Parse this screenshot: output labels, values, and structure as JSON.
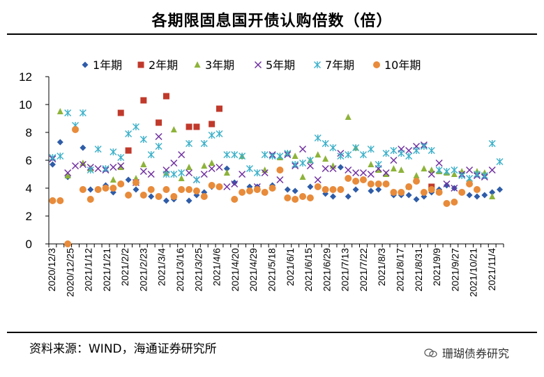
{
  "title": "各期限固息国开债认购倍数（倍）",
  "source": "资料来源：WIND，海通证券研究所",
  "watermark": "珊瑚债券研究",
  "chart_data": {
    "type": "scatter",
    "title": "各期限固息国开债认购倍数（倍）",
    "ylim": [
      0,
      12
    ],
    "yticks": [
      0,
      2,
      4,
      6,
      8,
      10,
      12
    ],
    "grid": false,
    "legend_position": "top",
    "x_tick_labels": [
      "2020/12/3",
      "2020/12/25",
      "2021/1/12",
      "2021/1/21",
      "2021/2/2",
      "2021/2/23",
      "2021/3/4",
      "2021/3/16",
      "2021/3/25",
      "2021/4/6",
      "2021/4/20",
      "2021/4/29",
      "2021/5/18",
      "2021/6/1",
      "2021/6/15",
      "2021/6/29",
      "2021/7/13",
      "2021/7/22",
      "2021/8/3",
      "2021/8/17",
      "2021/8/31",
      "2021/9/9",
      "2021/9/27",
      "2021/10/21",
      "2021/11/4"
    ],
    "n_x": 60,
    "series": [
      {
        "name": "1年期",
        "marker": "diamond",
        "color": "#2E5CA8",
        "points": [
          [
            0,
            5.7
          ],
          [
            1,
            7.3
          ],
          [
            2,
            4.8
          ],
          [
            4,
            6.9
          ],
          [
            5,
            3.9
          ],
          [
            7,
            4.2
          ],
          [
            8,
            3.7
          ],
          [
            10,
            4.6
          ],
          [
            11,
            3.9
          ],
          [
            13,
            3.4
          ],
          [
            15,
            3.1
          ],
          [
            16,
            3.2
          ],
          [
            18,
            3.1
          ],
          [
            19,
            3.5
          ],
          [
            20,
            3.7
          ],
          [
            21,
            4.1
          ],
          [
            23,
            5.4
          ],
          [
            24,
            4.4
          ],
          [
            26,
            4.1
          ],
          [
            27,
            4.1
          ],
          [
            29,
            4.2
          ],
          [
            31,
            3.9
          ],
          [
            32,
            3.8
          ],
          [
            34,
            4.1
          ],
          [
            36,
            3.6
          ],
          [
            37,
            3.4
          ],
          [
            38,
            5.5
          ],
          [
            39,
            3.4
          ],
          [
            40,
            3.9
          ],
          [
            41,
            4.6
          ],
          [
            42,
            3.8
          ],
          [
            43,
            3.9
          ],
          [
            45,
            3.5
          ],
          [
            46,
            3.5
          ],
          [
            47,
            3.5
          ],
          [
            48,
            3.2
          ],
          [
            49,
            3.4
          ],
          [
            50,
            3.7
          ],
          [
            51,
            3.9
          ],
          [
            52,
            4.2
          ],
          [
            53,
            4.0
          ],
          [
            54,
            3.7
          ],
          [
            55,
            3.5
          ],
          [
            56,
            3.4
          ],
          [
            57,
            3.5
          ],
          [
            58,
            3.7
          ],
          [
            59,
            3.9
          ]
        ]
      },
      {
        "name": "2年期",
        "marker": "square",
        "color": "#C0392B",
        "points": [
          [
            9,
            9.4
          ],
          [
            10,
            6.7
          ],
          [
            12,
            10.3
          ],
          [
            14,
            8.7
          ],
          [
            15,
            10.6
          ],
          [
            18,
            8.4
          ],
          [
            19,
            8.4
          ],
          [
            21,
            8.6
          ],
          [
            22,
            9.7
          ],
          [
            50,
            4.1
          ]
        ]
      },
      {
        "name": "3年期",
        "marker": "triangle",
        "color": "#8DB33A",
        "points": [
          [
            1,
            9.5
          ],
          [
            2,
            4.9
          ],
          [
            4,
            5.8
          ],
          [
            5,
            5.4
          ],
          [
            8,
            4.6
          ],
          [
            9,
            5.5
          ],
          [
            11,
            4.7
          ],
          [
            12,
            5.7
          ],
          [
            15,
            5.1
          ],
          [
            16,
            8.2
          ],
          [
            17,
            4.7
          ],
          [
            18,
            5.5
          ],
          [
            20,
            5.6
          ],
          [
            21,
            5.8
          ],
          [
            23,
            5.1
          ],
          [
            25,
            6.3
          ],
          [
            28,
            5.3
          ],
          [
            30,
            6.2
          ],
          [
            31,
            6.5
          ],
          [
            32,
            6.3
          ],
          [
            33,
            4.8
          ],
          [
            34,
            6.0
          ],
          [
            35,
            6.4
          ],
          [
            36,
            6.1
          ],
          [
            37,
            5.6
          ],
          [
            39,
            9.1
          ],
          [
            40,
            6.9
          ],
          [
            42,
            5.7
          ],
          [
            43,
            5.3
          ],
          [
            44,
            5.0
          ],
          [
            45,
            5.4
          ],
          [
            46,
            5.3
          ],
          [
            47,
            4.1
          ],
          [
            48,
            4.9
          ],
          [
            49,
            5.4
          ],
          [
            50,
            5.3
          ],
          [
            51,
            5.2
          ],
          [
            52,
            5.1
          ],
          [
            53,
            5.0
          ],
          [
            54,
            5.2
          ],
          [
            55,
            4.5
          ],
          [
            56,
            5.2
          ],
          [
            57,
            5.1
          ],
          [
            58,
            3.4
          ]
        ]
      },
      {
        "name": "5年期",
        "marker": "x",
        "color": "#7030A0",
        "points": [
          [
            0,
            6.1
          ],
          [
            2,
            5.1
          ],
          [
            3,
            5.6
          ],
          [
            4,
            5.7
          ],
          [
            5,
            5.5
          ],
          [
            6,
            5.4
          ],
          [
            7,
            5.3
          ],
          [
            8,
            5.5
          ],
          [
            9,
            5.6
          ],
          [
            11,
            4.4
          ],
          [
            12,
            5.2
          ],
          [
            13,
            5.0
          ],
          [
            14,
            7.7
          ],
          [
            15,
            5.3
          ],
          [
            16,
            5.8
          ],
          [
            17,
            6.4
          ],
          [
            18,
            5.1
          ],
          [
            19,
            4.6
          ],
          [
            20,
            5.0
          ],
          [
            21,
            5.4
          ],
          [
            22,
            5.5
          ],
          [
            23,
            4.1
          ],
          [
            24,
            4.3
          ],
          [
            25,
            5.0
          ],
          [
            27,
            4.1
          ],
          [
            28,
            5.1
          ],
          [
            29,
            6.4
          ],
          [
            30,
            4.6
          ],
          [
            31,
            6.4
          ],
          [
            32,
            5.6
          ],
          [
            33,
            6.8
          ],
          [
            34,
            5.6
          ],
          [
            35,
            4.6
          ],
          [
            36,
            5.4
          ],
          [
            37,
            5.4
          ],
          [
            38,
            6.5
          ],
          [
            39,
            5.3
          ],
          [
            40,
            5.1
          ],
          [
            41,
            5.1
          ],
          [
            42,
            5.0
          ],
          [
            43,
            5.4
          ],
          [
            44,
            5.1
          ],
          [
            45,
            6.0
          ],
          [
            46,
            6.8
          ],
          [
            47,
            6.7
          ],
          [
            48,
            7.0
          ],
          [
            49,
            7.1
          ],
          [
            50,
            5.0
          ],
          [
            51,
            5.8
          ],
          [
            52,
            4.3
          ],
          [
            53,
            4.0
          ],
          [
            54,
            5.0
          ],
          [
            55,
            5.3
          ],
          [
            56,
            4.9
          ],
          [
            57,
            4.8
          ],
          [
            58,
            5.3
          ]
        ]
      },
      {
        "name": "7年期",
        "marker": "star",
        "color": "#3BB0C9",
        "points": [
          [
            0,
            6.2
          ],
          [
            1,
            6.3
          ],
          [
            2,
            9.4
          ],
          [
            3,
            8.5
          ],
          [
            4,
            9.4
          ],
          [
            5,
            5.3
          ],
          [
            6,
            6.8
          ],
          [
            7,
            5.4
          ],
          [
            8,
            6.6
          ],
          [
            9,
            6.2
          ],
          [
            10,
            7.9
          ],
          [
            11,
            8.4
          ],
          [
            12,
            7.5
          ],
          [
            13,
            6.4
          ],
          [
            14,
            7.0
          ],
          [
            15,
            5.0
          ],
          [
            16,
            5.0
          ],
          [
            17,
            5.1
          ],
          [
            18,
            7.2
          ],
          [
            19,
            4.6
          ],
          [
            20,
            7.2
          ],
          [
            21,
            7.8
          ],
          [
            22,
            7.9
          ],
          [
            23,
            6.4
          ],
          [
            24,
            6.4
          ],
          [
            25,
            6.3
          ],
          [
            26,
            5.4
          ],
          [
            27,
            5.1
          ],
          [
            28,
            6.4
          ],
          [
            29,
            6.3
          ],
          [
            30,
            6.3
          ],
          [
            31,
            6.5
          ],
          [
            32,
            5.7
          ],
          [
            33,
            5.8
          ],
          [
            34,
            6.0
          ],
          [
            35,
            7.6
          ],
          [
            36,
            7.2
          ],
          [
            37,
            6.9
          ],
          [
            38,
            6.3
          ],
          [
            39,
            6.4
          ],
          [
            40,
            6.9
          ],
          [
            41,
            6.4
          ],
          [
            42,
            6.8
          ],
          [
            43,
            5.7
          ],
          [
            44,
            6.5
          ],
          [
            45,
            6.7
          ],
          [
            46,
            6.5
          ],
          [
            47,
            6.3
          ],
          [
            48,
            6.7
          ],
          [
            49,
            7.0
          ],
          [
            50,
            6.7
          ],
          [
            51,
            5.3
          ],
          [
            52,
            5.2
          ],
          [
            53,
            5.3
          ],
          [
            54,
            4.9
          ],
          [
            55,
            4.7
          ],
          [
            56,
            5.0
          ],
          [
            57,
            4.9
          ],
          [
            58,
            7.2
          ],
          [
            59,
            5.9
          ]
        ]
      },
      {
        "name": "10年期",
        "marker": "circle",
        "color": "#E88B3A",
        "points": [
          [
            0,
            3.1
          ],
          [
            1,
            3.1
          ],
          [
            2,
            0.0
          ],
          [
            3,
            8.2
          ],
          [
            4,
            3.9
          ],
          [
            5,
            3.2
          ],
          [
            6,
            3.9
          ],
          [
            7,
            4.0
          ],
          [
            8,
            4.0
          ],
          [
            9,
            4.3
          ],
          [
            10,
            3.5
          ],
          [
            11,
            4.4
          ],
          [
            12,
            3.5
          ],
          [
            13,
            3.9
          ],
          [
            14,
            3.4
          ],
          [
            15,
            3.9
          ],
          [
            16,
            3.4
          ],
          [
            17,
            3.9
          ],
          [
            18,
            3.9
          ],
          [
            19,
            3.8
          ],
          [
            20,
            3.4
          ],
          [
            21,
            4.2
          ],
          [
            22,
            4.1
          ],
          [
            24,
            3.2
          ],
          [
            25,
            3.7
          ],
          [
            26,
            3.8
          ],
          [
            27,
            3.9
          ],
          [
            28,
            3.7
          ],
          [
            29,
            4.0
          ],
          [
            30,
            5.3
          ],
          [
            31,
            3.3
          ],
          [
            32,
            3.2
          ],
          [
            33,
            3.4
          ],
          [
            34,
            3.3
          ],
          [
            35,
            4.1
          ],
          [
            36,
            3.9
          ],
          [
            37,
            3.9
          ],
          [
            38,
            3.9
          ],
          [
            39,
            4.7
          ],
          [
            40,
            4.5
          ],
          [
            41,
            4.6
          ],
          [
            42,
            4.3
          ],
          [
            43,
            4.3
          ],
          [
            44,
            4.3
          ],
          [
            45,
            3.7
          ],
          [
            46,
            3.7
          ],
          [
            47,
            4.1
          ],
          [
            48,
            4.5
          ],
          [
            49,
            3.7
          ],
          [
            50,
            3.9
          ],
          [
            51,
            3.7
          ],
          [
            52,
            2.9
          ],
          [
            53,
            3.0
          ],
          [
            54,
            3.7
          ],
          [
            55,
            4.3
          ],
          [
            56,
            3.9
          ]
        ]
      }
    ]
  }
}
